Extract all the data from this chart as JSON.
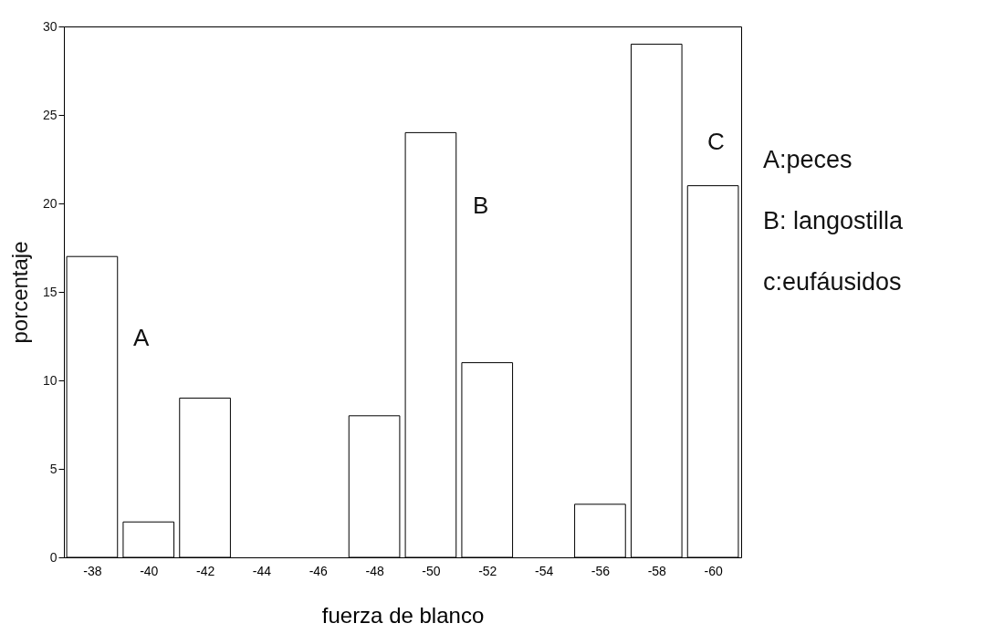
{
  "chart_data": {
    "type": "bar",
    "xlabel": "fuerza de blanco",
    "ylabel": "porcentaje",
    "categories": [
      "-38",
      "-40",
      "-42",
      "-44",
      "-46",
      "-48",
      "-50",
      "-52",
      "-54",
      "-56",
      "-58",
      "-60"
    ],
    "values": [
      17,
      2,
      9,
      0,
      0,
      8,
      24,
      11,
      0,
      3,
      29,
      21
    ],
    "color": "#ffffff",
    "ylim": [
      0,
      30
    ],
    "yticks": [
      0,
      5,
      10,
      15,
      20,
      25,
      30
    ],
    "grid": false,
    "annotations": [
      "A",
      "B",
      "C",
      "A:peces",
      "B: langostilla",
      "c:eufáusidos"
    ]
  }
}
